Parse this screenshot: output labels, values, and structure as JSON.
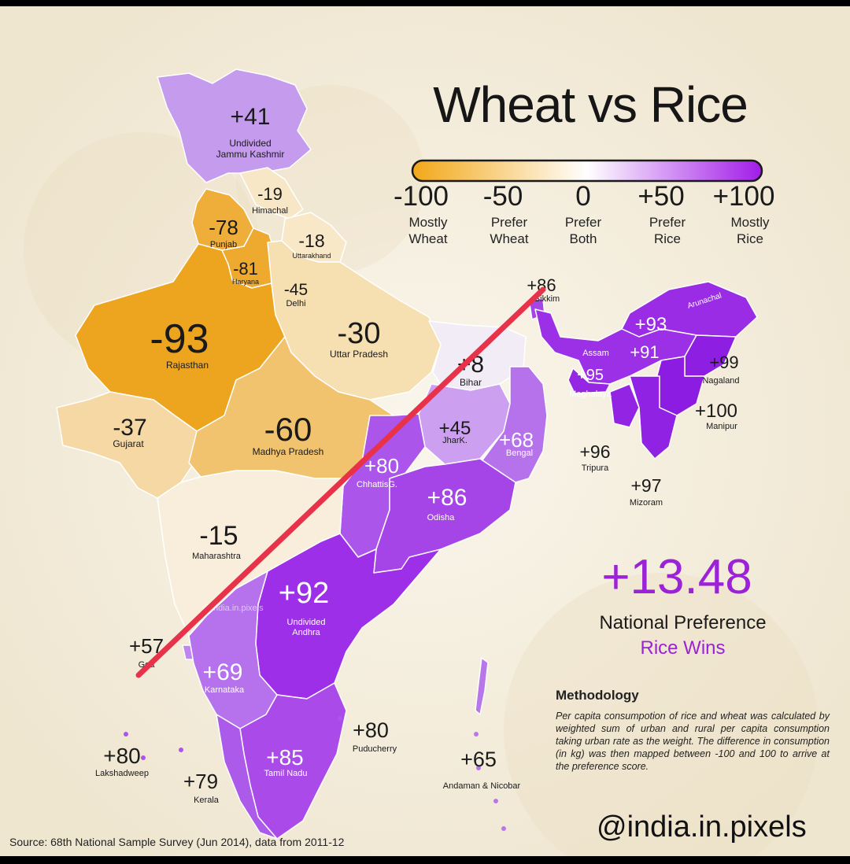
{
  "title": "Wheat vs Rice",
  "legend": {
    "gradient_colors": [
      "#f2a818",
      "#ffffff",
      "#a21ce8"
    ],
    "ticks": [
      {
        "value": "-100",
        "label1": "Mostly",
        "label2": "Wheat"
      },
      {
        "value": "-50",
        "label1": "Prefer",
        "label2": "Wheat"
      },
      {
        "value": "0",
        "label1": "Prefer",
        "label2": "Both"
      },
      {
        "value": "+50",
        "label1": "Prefer",
        "label2": "Rice"
      },
      {
        "value": "+100",
        "label1": "Mostly",
        "label2": "Rice"
      }
    ]
  },
  "regions": [
    {
      "id": "jk",
      "value": "+41",
      "name": "Undivided",
      "name2": "Jammu Kashmir",
      "color": "#c59bee"
    },
    {
      "id": "hp",
      "value": "-19",
      "name": "Himachal",
      "color": "#f8e7c6"
    },
    {
      "id": "pb",
      "value": "-78",
      "name": "Punjab",
      "color": "#efad3a"
    },
    {
      "id": "uk",
      "value": "-18",
      "name": "Uttarakhand",
      "color": "#f8e8c8"
    },
    {
      "id": "hr",
      "value": "-81",
      "name": "Haryana",
      "color": "#eea92f"
    },
    {
      "id": "dl",
      "value": "-45",
      "name": "Delhi",
      "color": "#f5d9a0"
    },
    {
      "id": "rj",
      "value": "-93",
      "name": "Rajasthan",
      "color": "#eda520"
    },
    {
      "id": "up",
      "value": "-30",
      "name": "Uttar Pradesh",
      "color": "#f6dfb0"
    },
    {
      "id": "br",
      "value": "+8",
      "name": "Bihar",
      "color": "#f1ecf6"
    },
    {
      "id": "gj",
      "value": "-37",
      "name": "Gujarat",
      "color": "#f5d8a4"
    },
    {
      "id": "mp",
      "value": "-60",
      "name": "Madhya Pradesh",
      "color": "#f2c36e"
    },
    {
      "id": "jh",
      "value": "+45",
      "name": "JharK.",
      "color": "#cc9ff1"
    },
    {
      "id": "wb",
      "value": "+68",
      "name": "Bengal",
      "color": "#b672ea"
    },
    {
      "id": "cg",
      "value": "+80",
      "name": "ChhattisG.",
      "color": "#ab55ea"
    },
    {
      "id": "od",
      "value": "+86",
      "name": "Odisha",
      "color": "#a545e8"
    },
    {
      "id": "mh",
      "value": "-15",
      "name": "Maharashtra",
      "color": "#f9eedb"
    },
    {
      "id": "ap",
      "value": "+92",
      "name": "Undivided",
      "name2": "Andhra",
      "color": "#9d2fe8"
    },
    {
      "id": "ga",
      "value": "+57",
      "name": "Goa",
      "color": "#be86ee"
    },
    {
      "id": "ka",
      "value": "+69",
      "name": "Karnataka",
      "color": "#b572ec"
    },
    {
      "id": "tn",
      "value": "+85",
      "name": "Tamil Nadu",
      "color": "#a94ae9"
    },
    {
      "id": "kl",
      "value": "+79",
      "name": "Kerala",
      "color": "#ac5aea"
    },
    {
      "id": "ld",
      "value": "+80",
      "name": "Lakshadweep",
      "color": "#ab55ea"
    },
    {
      "id": "py",
      "value": "+80",
      "name": "Puducherry",
      "color": "#ab55ea"
    },
    {
      "id": "an",
      "value": "+65",
      "name": "Andaman & Nicobar",
      "color": "#b777ea"
    },
    {
      "id": "sk",
      "value": "+86",
      "name": "Sikkim",
      "color": "#a545e8"
    },
    {
      "id": "ar",
      "value": "+93",
      "name": "Arunachal",
      "color": "#9a2ce6"
    },
    {
      "id": "as",
      "value": "+91",
      "name": "Assam",
      "color": "#9c30e7"
    },
    {
      "id": "ml",
      "value": "+95",
      "name": "Meghalaya",
      "color": "#9526e4"
    },
    {
      "id": "nl",
      "value": "+99",
      "name": "Nagaland",
      "color": "#8e1ee2"
    },
    {
      "id": "mn",
      "value": "+100",
      "name": "Manipur",
      "color": "#8c1ce2"
    },
    {
      "id": "tr",
      "value": "+96",
      "name": "Tripura",
      "color": "#9324e4"
    },
    {
      "id": "mz",
      "value": "+97",
      "name": "Mizoram",
      "color": "#9022e3"
    }
  ],
  "national": {
    "score": "+13.48",
    "label": "National Preference",
    "verdict": "Rice Wins"
  },
  "methodology": {
    "title": "Methodology",
    "text": "Per capita consumpotion of rice and wheat was calculated by weighted sum of urban and rural per capita consumption taking urban rate as the weight. The difference in consumption (in kg) was then mapped between -100 and 100 to arrive at the preference score."
  },
  "watermark": "@india.in.pixels",
  "handle": "@india.in.pixels",
  "source": "Source: 68th National Sample Survey (Jun 2014), data from 2011-12",
  "annotation_line_color": "#e8324a"
}
